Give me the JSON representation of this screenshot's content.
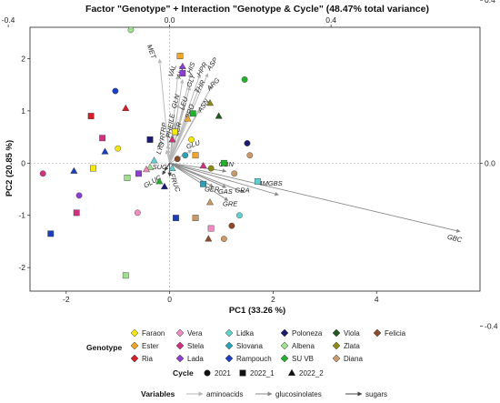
{
  "chart_data": {
    "type": "scatter",
    "title": "Factor \"Genotype\" + Interaction \"Genotype & Cycle\" (48.47% total variance)",
    "xlabel": "PC1 (33.26 %)",
    "ylabel": "PC2 (20.85 %)",
    "xlim": [
      -2.7,
      6.0
    ],
    "ylim": [
      -2.45,
      2.6
    ],
    "x_ticks": [
      "-2",
      "0",
      "2",
      "4"
    ],
    "x_tick_values": [
      -2,
      0,
      2,
      4
    ],
    "y_ticks": [
      "-2",
      "-1",
      "0",
      "1",
      "2"
    ],
    "y_tick_values": [
      -2,
      -1,
      0,
      1,
      2
    ],
    "top_ticks": [
      "-0.4",
      "0.0",
      "0.4"
    ],
    "top_tick_values": [
      -0.4,
      0.0,
      0.4
    ],
    "right_ticks": [
      "-0.4",
      "0.0",
      "0.4"
    ],
    "right_tick_values": [
      -0.4,
      0.0,
      0.4
    ],
    "loading_scale": 7.8,
    "grid": false,
    "genotypes": [
      {
        "name": "Faraon",
        "color": "#f5e60e"
      },
      {
        "name": "Ester",
        "color": "#f0a52a"
      },
      {
        "name": "Ria",
        "color": "#d21f2a"
      },
      {
        "name": "Vera",
        "color": "#f08ac0"
      },
      {
        "name": "Stela",
        "color": "#d2317f"
      },
      {
        "name": "Lada",
        "color": "#8c3fd0"
      },
      {
        "name": "Lidka",
        "color": "#5fd0d0"
      },
      {
        "name": "Slovana",
        "color": "#2aa3b8"
      },
      {
        "name": "Rampouch",
        "color": "#1b3fc0"
      },
      {
        "name": "Poloneza",
        "color": "#1b1b6e"
      },
      {
        "name": "Albena",
        "color": "#9fe08f"
      },
      {
        "name": "SU VB",
        "color": "#22b12c"
      },
      {
        "name": "Viola",
        "color": "#1f5a1f"
      },
      {
        "name": "Zlata",
        "color": "#8a8a1a"
      },
      {
        "name": "Diana",
        "color": "#c89a6a"
      },
      {
        "name": "Felicia",
        "color": "#8c4a2a"
      }
    ],
    "cycles": [
      {
        "name": "2021",
        "shape": "circle"
      },
      {
        "name": "2022_1",
        "shape": "square"
      },
      {
        "name": "2022_2",
        "shape": "triangle"
      }
    ],
    "variables": [
      {
        "name": "aminoacids",
        "color": "#b5b5b5"
      },
      {
        "name": "glucosinolates",
        "color": "#888888"
      },
      {
        "name": "sugars",
        "color": "#444444"
      }
    ],
    "points": [
      {
        "genotype": "Albena",
        "cycle": "2021",
        "x": -0.75,
        "y": 2.55
      },
      {
        "genotype": "Rampouch",
        "cycle": "2021",
        "x": -1.05,
        "y": 1.38
      },
      {
        "genotype": "Faraon",
        "cycle": "2021",
        "x": -1.0,
        "y": 0.28
      },
      {
        "genotype": "Stela",
        "cycle": "2021",
        "x": -2.45,
        "y": -0.2
      },
      {
        "genotype": "Lada",
        "cycle": "2021",
        "x": -1.75,
        "y": -0.62
      },
      {
        "genotype": "Lada",
        "cycle": "2022_1",
        "x": -0.6,
        "y": -0.2
      },
      {
        "genotype": "Vera",
        "cycle": "2021",
        "x": -0.62,
        "y": -0.95
      },
      {
        "genotype": "Felicia",
        "cycle": "2021",
        "x": 0.15,
        "y": 0.08
      },
      {
        "genotype": "Slovana",
        "cycle": "2021",
        "x": 0.3,
        "y": 0.15
      },
      {
        "genotype": "Faraon",
        "cycle": "2021",
        "x": 0.42,
        "y": 0.45
      },
      {
        "genotype": "Zlata",
        "cycle": "2021",
        "x": 0.8,
        "y": -0.1
      },
      {
        "genotype": "Diana",
        "cycle": "2021",
        "x": 1.25,
        "y": -0.2
      },
      {
        "genotype": "Poloneza",
        "cycle": "2021",
        "x": 1.5,
        "y": 0.38
      },
      {
        "genotype": "Diana",
        "cycle": "2021",
        "x": 1.55,
        "y": 0.15
      },
      {
        "genotype": "Lidka",
        "cycle": "2021",
        "x": 1.35,
        "y": -1.0
      },
      {
        "genotype": "Felicia",
        "cycle": "2021",
        "x": 1.2,
        "y": -1.2
      },
      {
        "genotype": "Diana",
        "cycle": "2021",
        "x": 1.05,
        "y": -1.45
      },
      {
        "genotype": "SU VB",
        "cycle": "2021",
        "x": 1.45,
        "y": 1.6
      },
      {
        "genotype": "Stela",
        "cycle": "2022_1",
        "x": -1.3,
        "y": 0.48
      },
      {
        "genotype": "Ria",
        "cycle": "2022_1",
        "x": -1.52,
        "y": 0.9
      },
      {
        "genotype": "Rampouch",
        "cycle": "2022_1",
        "x": -2.3,
        "y": -1.35
      },
      {
        "genotype": "Stela",
        "cycle": "2022_1",
        "x": -1.8,
        "y": -0.95
      },
      {
        "genotype": "Faraon",
        "cycle": "2022_1",
        "x": -1.48,
        "y": -0.1
      },
      {
        "genotype": "Albena",
        "cycle": "2022_1",
        "x": -0.82,
        "y": -0.28
      },
      {
        "genotype": "Poloneza",
        "cycle": "2022_1",
        "x": -0.38,
        "y": 0.45
      },
      {
        "genotype": "Ester",
        "cycle": "2022_1",
        "x": 0.2,
        "y": 2.05
      },
      {
        "genotype": "Lada",
        "cycle": "2022_1",
        "x": 0.25,
        "y": 1.72
      },
      {
        "genotype": "SU VB",
        "cycle": "2022_1",
        "x": 0.45,
        "y": 0.95
      },
      {
        "genotype": "Faraon",
        "cycle": "2022_1",
        "x": 0.1,
        "y": 0.6
      },
      {
        "genotype": "Ester",
        "cycle": "2022_1",
        "x": 0.5,
        "y": 0.15
      },
      {
        "genotype": "SU VB",
        "cycle": "2022_1",
        "x": 1.05,
        "y": 0.0
      },
      {
        "genotype": "Slovana",
        "cycle": "2022_1",
        "x": 0.65,
        "y": -0.4
      },
      {
        "genotype": "Rampouch",
        "cycle": "2022_1",
        "x": 0.12,
        "y": -1.05
      },
      {
        "genotype": "Diana",
        "cycle": "2022_1",
        "x": 0.5,
        "y": -1.05
      },
      {
        "genotype": "Vera",
        "cycle": "2022_1",
        "x": 0.8,
        "y": -1.25
      },
      {
        "genotype": "Albena",
        "cycle": "2022_1",
        "x": -0.85,
        "y": -2.15
      },
      {
        "genotype": "Lidka",
        "cycle": "2022_1",
        "x": 1.7,
        "y": -0.35
      },
      {
        "genotype": "Ria",
        "cycle": "2022_2",
        "x": -0.85,
        "y": 1.05
      },
      {
        "genotype": "Rampouch",
        "cycle": "2022_2",
        "x": -1.25,
        "y": 0.22
      },
      {
        "genotype": "Rampouch",
        "cycle": "2022_2",
        "x": -1.85,
        "y": -0.15
      },
      {
        "genotype": "Lidka",
        "cycle": "2022_2",
        "x": -0.3,
        "y": 0.05
      },
      {
        "genotype": "Albena",
        "cycle": "2022_2",
        "x": -0.38,
        "y": -0.08
      },
      {
        "genotype": "SU VB",
        "cycle": "2022_2",
        "x": -0.2,
        "y": -0.35
      },
      {
        "genotype": "Poloneza",
        "cycle": "2022_2",
        "x": -0.1,
        "y": -0.45
      },
      {
        "genotype": "Vera",
        "cycle": "2022_2",
        "x": -0.45,
        "y": -0.12
      },
      {
        "genotype": "Lada",
        "cycle": "2022_2",
        "x": 0.25,
        "y": 1.85
      },
      {
        "genotype": "Ester",
        "cycle": "2022_2",
        "x": 0.35,
        "y": 0.85
      },
      {
        "genotype": "Stela",
        "cycle": "2022_2",
        "x": 0.05,
        "y": 0.45
      },
      {
        "genotype": "Viola",
        "cycle": "2022_2",
        "x": 0.95,
        "y": 0.9
      },
      {
        "genotype": "Zlata",
        "cycle": "2022_2",
        "x": 0.78,
        "y": 1.15
      },
      {
        "genotype": "Diana",
        "cycle": "2022_2",
        "x": 0.78,
        "y": -0.75
      },
      {
        "genotype": "Felicia",
        "cycle": "2022_2",
        "x": 0.75,
        "y": -1.45
      },
      {
        "genotype": "Stela",
        "cycle": "2022_2",
        "x": 0.65,
        "y": -0.05
      },
      {
        "genotype": "Lidka",
        "cycle": "2022_2",
        "x": 0.05,
        "y": -0.1
      }
    ],
    "vectors": [
      {
        "name": "MET",
        "group": "aminoacids",
        "x": -0.025,
        "y": 0.255,
        "lx": -0.05,
        "ly": 0.272,
        "rot": 70
      },
      {
        "name": "VAL",
        "group": "aminoacids",
        "x": 0.02,
        "y": 0.215,
        "lx": 0.012,
        "ly": 0.225,
        "rot": -72
      },
      {
        "name": "ALA",
        "group": "aminoacids",
        "x": 0.032,
        "y": 0.205,
        "lx": 0.032,
        "ly": 0.222,
        "rot": -72
      },
      {
        "name": "HIS",
        "group": "aminoacids",
        "x": 0.052,
        "y": 0.22,
        "lx": 0.058,
        "ly": 0.232,
        "rot": -68
      },
      {
        "name": "GLY",
        "group": "aminoacids",
        "x": 0.05,
        "y": 0.188,
        "lx": 0.058,
        "ly": 0.2,
        "rot": -68
      },
      {
        "name": "HPR",
        "group": "aminoacids",
        "x": 0.075,
        "y": 0.218,
        "lx": 0.085,
        "ly": 0.228,
        "rot": -60
      },
      {
        "name": "ASP",
        "group": "aminoacids",
        "x": 0.095,
        "y": 0.22,
        "lx": 0.11,
        "ly": 0.24,
        "rot": -55
      },
      {
        "name": "THR",
        "group": "aminoacids",
        "x": 0.072,
        "y": 0.182,
        "lx": 0.08,
        "ly": 0.185,
        "rot": -60
      },
      {
        "name": "ARG",
        "group": "aminoacids",
        "x": 0.105,
        "y": 0.19,
        "lx": 0.112,
        "ly": 0.19,
        "rot": -45
      },
      {
        "name": "ASN",
        "group": "aminoacids",
        "x": 0.075,
        "y": 0.132,
        "lx": 0.088,
        "ly": 0.138,
        "rot": -55
      },
      {
        "name": "GLN",
        "group": "aminoacids",
        "x": 0.022,
        "y": 0.145,
        "lx": 0.02,
        "ly": 0.15,
        "rot": -75
      },
      {
        "name": "LEU",
        "group": "aminoacids",
        "x": 0.035,
        "y": 0.14,
        "lx": 0.04,
        "ly": 0.145,
        "rot": -72
      },
      {
        "name": "PRO",
        "group": "aminoacids",
        "x": 0.045,
        "y": 0.12,
        "lx": 0.055,
        "ly": 0.125,
        "rot": -70
      },
      {
        "name": "ILE",
        "group": "aminoacids",
        "x": 0.012,
        "y": 0.1,
        "lx": 0.01,
        "ly": 0.108,
        "rot": -78
      },
      {
        "name": "TRP",
        "group": "aminoacids",
        "x": -0.005,
        "y": 0.075,
        "lx": -0.01,
        "ly": 0.082,
        "rot": -80
      },
      {
        "name": "PHE",
        "group": "aminoacids",
        "x": 0.008,
        "y": 0.072,
        "lx": 0.005,
        "ly": 0.078,
        "rot": -78
      },
      {
        "name": "SER",
        "group": "aminoacids",
        "x": 0.02,
        "y": 0.08,
        "lx": 0.025,
        "ly": 0.082,
        "rot": -75
      },
      {
        "name": "TYR",
        "group": "aminoacids",
        "x": -0.005,
        "y": 0.045,
        "lx": -0.015,
        "ly": 0.05,
        "rot": -75
      },
      {
        "name": "LYS",
        "group": "aminoacids",
        "x": -0.008,
        "y": 0.032,
        "lx": -0.018,
        "ly": 0.035,
        "rot": -70
      },
      {
        "name": "GLU",
        "group": "aminoacids",
        "x": 0.055,
        "y": 0.032,
        "lx": 0.06,
        "ly": 0.04,
        "rot": -20
      },
      {
        "name": "GBN",
        "group": "glucosinolates",
        "x": 0.14,
        "y": -0.02,
        "lx": 0.14,
        "ly": -0.008,
        "rot": 0
      },
      {
        "name": "GBC",
        "group": "glucosinolates",
        "x": 0.72,
        "y": -0.168,
        "lx": 0.705,
        "ly": -0.19,
        "rot": 14
      },
      {
        "name": "4MGBS",
        "group": "glucosinolates",
        "x": 0.27,
        "y": -0.078,
        "lx": 0.25,
        "ly": -0.055,
        "rot": 0
      },
      {
        "name": "GRA",
        "group": "glucosinolates",
        "x": 0.185,
        "y": -0.072,
        "lx": 0.18,
        "ly": -0.072,
        "rot": 0
      },
      {
        "name": "GAS",
        "group": "glucosinolates",
        "x": 0.14,
        "y": -0.06,
        "lx": 0.138,
        "ly": -0.075,
        "rot": 0
      },
      {
        "name": "GER",
        "group": "glucosinolates",
        "x": 0.108,
        "y": -0.058,
        "lx": 0.105,
        "ly": -0.07,
        "rot": 0
      },
      {
        "name": "GRE",
        "group": "glucosinolates",
        "x": 0.145,
        "y": -0.092,
        "lx": 0.15,
        "ly": -0.105,
        "rot": 0
      },
      {
        "name": "GLUC",
        "group": "sugars",
        "x": -0.018,
        "y": -0.028,
        "lx": -0.04,
        "ly": -0.05,
        "rot": -30
      },
      {
        "name": "FRUC",
        "group": "sugars",
        "x": 0.0,
        "y": -0.032,
        "lx": 0.008,
        "ly": -0.05,
        "rot": 70
      },
      {
        "name": "SUC",
        "group": "sugars",
        "x": -0.012,
        "y": -0.018,
        "lx": -0.025,
        "ly": -0.015,
        "rot": 0
      }
    ],
    "legend": {
      "genotype_title": "Genotype",
      "cycle_title": "Cycle",
      "variables_title": "Variables",
      "placement": "bottom"
    }
  }
}
